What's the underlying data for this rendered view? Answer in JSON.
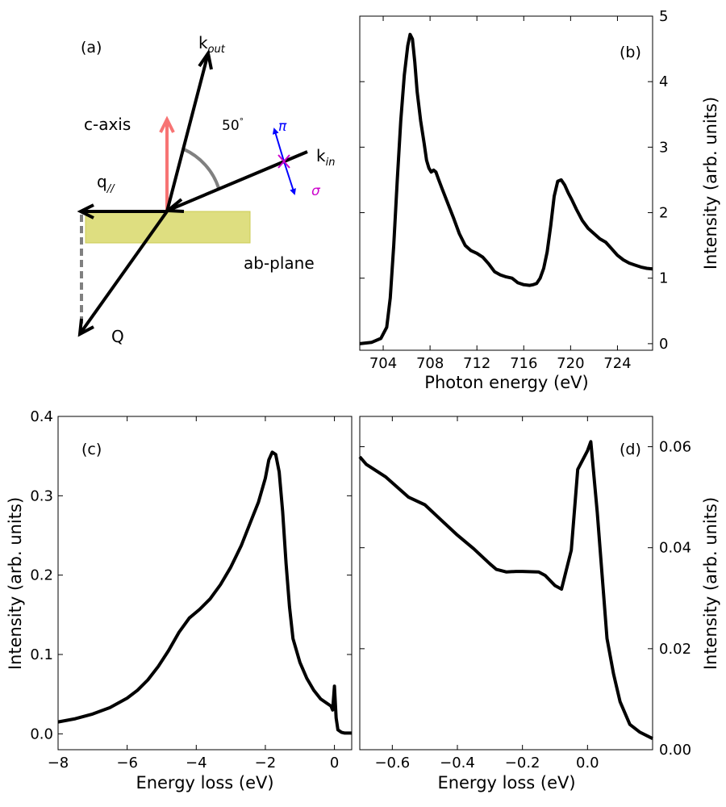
{
  "chart_data": [
    {
      "panel": "(a)",
      "type": "diagram",
      "labels": {
        "panel": "(a)",
        "k_out": "k",
        "k_out_sub": "out",
        "k_in": "k",
        "k_in_sub": "in",
        "c_axis": "c-axis",
        "angle": "50",
        "angle_unit": "°",
        "pi": "π",
        "sigma": "σ",
        "q_par": "q",
        "q_par_sub": "//",
        "ab_plane": "ab-plane",
        "Q": "Q"
      },
      "scattering_angle_deg": 50,
      "colors": {
        "c_axis": "#f77474",
        "polarization_pi": "#0000ff",
        "polarization_sigma": "#cc00cc",
        "ab_plane": "#dede80",
        "angle_arc": "#808080"
      }
    },
    {
      "panel": "(b)",
      "type": "line",
      "xlabel": "Photon energy (eV)",
      "ylabel": "Intensity (arb. units)",
      "xlim": [
        702,
        727
      ],
      "ylim": [
        -0.1,
        5
      ],
      "xticks": [
        704,
        708,
        712,
        716,
        720,
        724
      ],
      "yticks": [
        0,
        1,
        2,
        3,
        4,
        5
      ],
      "x": [
        702.0,
        703.0,
        703.8,
        704.3,
        704.6,
        704.9,
        705.2,
        705.5,
        705.8,
        706.1,
        706.3,
        706.5,
        706.7,
        706.9,
        707.2,
        707.5,
        707.7,
        707.9,
        708.1,
        708.3,
        708.5,
        708.7,
        709.0,
        709.5,
        710.0,
        710.5,
        711.0,
        711.5,
        712.0,
        712.5,
        713.0,
        713.5,
        714.0,
        714.5,
        715.0,
        715.5,
        716.0,
        716.5,
        716.8,
        717.1,
        717.4,
        717.7,
        718.0,
        718.3,
        718.6,
        718.9,
        719.2,
        719.5,
        719.8,
        720.1,
        720.5,
        721.0,
        721.5,
        722.0,
        722.5,
        723.0,
        723.5,
        724.0,
        724.5,
        725.0,
        725.5,
        726.0,
        726.5,
        727.0
      ],
      "y": [
        0.0,
        0.02,
        0.08,
        0.25,
        0.7,
        1.5,
        2.5,
        3.4,
        4.1,
        4.55,
        4.72,
        4.65,
        4.3,
        3.85,
        3.4,
        3.05,
        2.8,
        2.68,
        2.62,
        2.65,
        2.62,
        2.52,
        2.38,
        2.15,
        1.92,
        1.68,
        1.5,
        1.42,
        1.38,
        1.32,
        1.22,
        1.1,
        1.05,
        1.02,
        1.0,
        0.93,
        0.9,
        0.89,
        0.9,
        0.92,
        1.0,
        1.15,
        1.4,
        1.8,
        2.25,
        2.48,
        2.5,
        2.42,
        2.3,
        2.2,
        2.05,
        1.88,
        1.76,
        1.68,
        1.6,
        1.55,
        1.45,
        1.35,
        1.28,
        1.23,
        1.2,
        1.17,
        1.15,
        1.14
      ],
      "annotation": "(b)"
    },
    {
      "panel": "(c)",
      "type": "line",
      "xlabel": "Energy loss (eV)",
      "ylabel": "Intensity (arb. units)",
      "xlim": [
        -8,
        0.5
      ],
      "ylim": [
        -0.02,
        0.4
      ],
      "xticks": [
        -8,
        -6,
        -4,
        -2,
        0
      ],
      "xtick_labels": [
        "−8",
        "−6",
        "−4",
        "−2",
        "0"
      ],
      "yticks": [
        0.0,
        0.1,
        0.2,
        0.3,
        0.4
      ],
      "ytick_labels": [
        "0.0",
        "0.1",
        "0.2",
        "0.3",
        "0.4"
      ],
      "x": [
        -8.0,
        -7.5,
        -7.0,
        -6.5,
        -6.0,
        -5.7,
        -5.4,
        -5.1,
        -4.8,
        -4.5,
        -4.2,
        -3.9,
        -3.6,
        -3.3,
        -3.0,
        -2.7,
        -2.4,
        -2.2,
        -2.0,
        -1.9,
        -1.8,
        -1.7,
        -1.6,
        -1.5,
        -1.4,
        -1.3,
        -1.2,
        -1.0,
        -0.8,
        -0.6,
        -0.4,
        -0.2,
        -0.1,
        -0.05,
        0.0,
        0.05,
        0.1,
        0.2,
        0.3,
        0.5
      ],
      "y": [
        0.015,
        0.019,
        0.025,
        0.033,
        0.045,
        0.055,
        0.068,
        0.085,
        0.105,
        0.128,
        0.146,
        0.157,
        0.17,
        0.188,
        0.21,
        0.237,
        0.27,
        0.292,
        0.322,
        0.345,
        0.355,
        0.352,
        0.33,
        0.28,
        0.215,
        0.16,
        0.12,
        0.09,
        0.07,
        0.055,
        0.044,
        0.038,
        0.035,
        0.03,
        0.06,
        0.02,
        0.005,
        0.002,
        0.001,
        0.001
      ],
      "annotation": "(c)"
    },
    {
      "panel": "(d)",
      "type": "line",
      "xlabel": "Energy loss (eV)",
      "ylabel": "Intensity (arb. units)",
      "xlim": [
        -0.7,
        0.2
      ],
      "ylim": [
        0.0,
        0.066
      ],
      "xticks": [
        -0.6,
        -0.4,
        -0.2,
        0.0
      ],
      "xtick_labels": [
        "−0.6",
        "−0.4",
        "−0.2",
        "0.0"
      ],
      "yticks": [
        0.0,
        0.02,
        0.04,
        0.06
      ],
      "ytick_labels": [
        "0.00",
        "0.02",
        "0.04",
        "0.06"
      ],
      "x": [
        -0.7,
        -0.68,
        -0.62,
        -0.55,
        -0.5,
        -0.45,
        -0.4,
        -0.35,
        -0.3,
        -0.28,
        -0.25,
        -0.22,
        -0.2,
        -0.15,
        -0.13,
        -0.1,
        -0.08,
        -0.05,
        -0.03,
        0.0,
        0.01,
        0.03,
        0.06,
        0.08,
        0.1,
        0.13,
        0.16,
        0.2
      ],
      "y": [
        0.058,
        0.0565,
        0.054,
        0.05,
        0.0485,
        0.0455,
        0.0425,
        0.0398,
        0.0368,
        0.0357,
        0.0352,
        0.0353,
        0.0353,
        0.0352,
        0.0345,
        0.0325,
        0.0318,
        0.0395,
        0.0555,
        0.0592,
        0.061,
        0.047,
        0.022,
        0.015,
        0.0095,
        0.005,
        0.0035,
        0.0022
      ],
      "annotation": "(d)"
    }
  ]
}
